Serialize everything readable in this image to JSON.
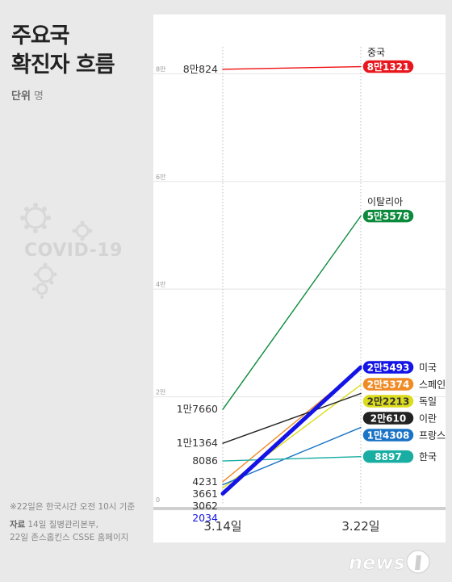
{
  "header": {
    "title_line1": "주요국",
    "title_line2": "확진자 흐름",
    "unit_label": "단위",
    "unit_value": "명"
  },
  "decoration": {
    "covid_text": "COVID-19"
  },
  "footer": {
    "note": "※22일은 한국시간 오전 10시 기준",
    "source_label": "자료",
    "source_line1": "14일 질병관리본부,",
    "source_line2": "22일 존스홉킨스 CSSE 홈페이지"
  },
  "brand": {
    "logo_text": "news"
  },
  "chart_data": {
    "type": "line",
    "categories": [
      "3.14일",
      "3.22일"
    ],
    "ylim": [
      0,
      85000
    ],
    "y_ticks": [
      {
        "value": 0,
        "label": "0"
      },
      {
        "value": 20000,
        "label": "2만"
      },
      {
        "value": 40000,
        "label": "4만"
      },
      {
        "value": 60000,
        "label": "6만"
      },
      {
        "value": 80000,
        "label": "8만"
      }
    ],
    "series": [
      {
        "name": "중국",
        "values": [
          80824,
          81321
        ],
        "start_label": "8만824",
        "end_label": "8만1321",
        "color": "#ee1111",
        "label_color": "#e8171e",
        "start_label_color": "#333333",
        "width": 1.4,
        "name_above": true
      },
      {
        "name": "이탈리아",
        "values": [
          17660,
          53578
        ],
        "start_label": "1만7660",
        "end_label": "5만3578",
        "color": "#0c8a3c",
        "label_color": "#0c8a3c",
        "start_label_color": "#333333",
        "width": 1.4,
        "name_above": true
      },
      {
        "name": "미국",
        "values": [
          2034,
          25493
        ],
        "start_label": "2034",
        "end_label": "2만5493",
        "color": "#1414e6",
        "label_color": "#1414e6",
        "start_label_color": "#1414e6",
        "width": 5
      },
      {
        "name": "스페인",
        "values": [
          4231,
          25374
        ],
        "start_label": "4231",
        "end_label": "2만5374",
        "color": "#f08a24",
        "label_color": "#f08a24",
        "start_label_color": "#333333",
        "width": 1.4
      },
      {
        "name": "독일",
        "values": [
          3062,
          22213
        ],
        "start_label": "3062",
        "end_label": "2만2213",
        "color": "#dcdc1e",
        "label_color": "#dcdc1e",
        "start_label_color": "#333333",
        "width": 1.4,
        "dark_text": true
      },
      {
        "name": "이란",
        "values": [
          11364,
          20610
        ],
        "start_label": "1만1364",
        "end_label": "2만610",
        "color": "#222222",
        "label_color": "#222222",
        "start_label_color": "#333333",
        "width": 1.4
      },
      {
        "name": "프랑스",
        "values": [
          3661,
          14308
        ],
        "start_label": "3661",
        "end_label": "1만4308",
        "color": "#1a73c6",
        "label_color": "#1a73c6",
        "start_label_color": "#333333",
        "width": 1.4
      },
      {
        "name": "한국",
        "values": [
          8086,
          8897
        ],
        "start_label": "8086",
        "end_label": "8897",
        "color": "#1aaea3",
        "label_color": "#1aaea3",
        "start_label_color": "#333333",
        "width": 1.4
      }
    ]
  }
}
